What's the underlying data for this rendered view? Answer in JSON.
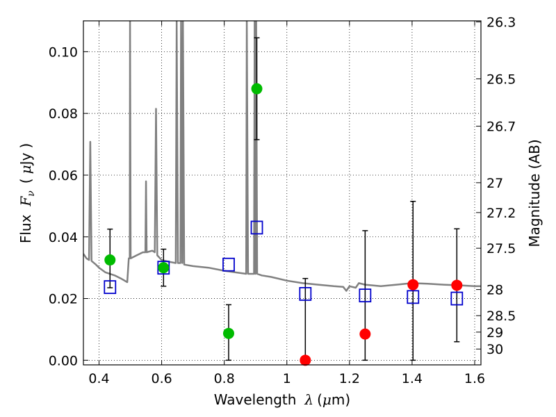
{
  "chart_data": {
    "type": "scatter",
    "xlabel": {
      "prefix": "Wavelength",
      "symbol": "λ",
      "unit_open": "(",
      "unit_mu": "μ",
      "unit_rest": "m)"
    },
    "ylabel": {
      "prefix": "Flux",
      "symbol": "F",
      "subscript": "ν",
      "unit_open": "(",
      "unit_mu": "μ",
      "unit_rest": "Jy",
      "unit_close": ")"
    },
    "y2label": "Magnitude (AB)",
    "xlim": [
      0.35,
      1.62
    ],
    "ylim": [
      -0.0015,
      0.11
    ],
    "grid": true,
    "x_ticks": [
      {
        "value": 0.4,
        "label": "0.4"
      },
      {
        "value": 0.6,
        "label": "0.6"
      },
      {
        "value": 0.8,
        "label": "0.8"
      },
      {
        "value": 1.0,
        "label": "1"
      },
      {
        "value": 1.2,
        "label": "1.2"
      },
      {
        "value": 1.4,
        "label": "1.4"
      },
      {
        "value": 1.6,
        "label": "1.6"
      }
    ],
    "y_ticks": [
      {
        "value": 0.0,
        "label": "0.00"
      },
      {
        "value": 0.02,
        "label": "0.02"
      },
      {
        "value": 0.04,
        "label": "0.04"
      },
      {
        "value": 0.06,
        "label": "0.06"
      },
      {
        "value": 0.08,
        "label": "0.08"
      },
      {
        "value": 0.1,
        "label": "0.10"
      }
    ],
    "mag_ticks": [
      {
        "value": 26.3,
        "label": "26.3"
      },
      {
        "value": 26.5,
        "label": "26.5"
      },
      {
        "value": 26.7,
        "label": "26.7"
      },
      {
        "value": 27.0,
        "label": "27"
      },
      {
        "value": 27.2,
        "label": "27.2"
      },
      {
        "value": 27.5,
        "label": "27.5"
      },
      {
        "value": 28.0,
        "label": "28"
      },
      {
        "value": 28.5,
        "label": "28.5"
      },
      {
        "value": 29.0,
        "label": "29"
      },
      {
        "value": 30.0,
        "label": "30"
      }
    ],
    "colors": {
      "detection": "#00bb00",
      "upper_limit": "#ff0000",
      "model": "#0000cc",
      "template": "#808080",
      "errorbar": "#000000"
    },
    "observed": [
      {
        "x": 0.435,
        "y": 0.0325,
        "yerr_low": 0.009,
        "yerr_high": 0.01,
        "kind": "detection"
      },
      {
        "x": 0.606,
        "y": 0.03,
        "yerr_low": 0.006,
        "yerr_high": 0.006,
        "kind": "detection"
      },
      {
        "x": 0.814,
        "y": 0.0087,
        "yerr_low": 0.0087,
        "yerr_high": 0.0093,
        "kind": "detection"
      },
      {
        "x": 0.904,
        "y": 0.088,
        "yerr_low": 0.0165,
        "yerr_high": 0.0165,
        "kind": "detection"
      },
      {
        "x": 1.059,
        "y": 0.0,
        "yerr_low": 0.0,
        "yerr_high": 0.0265,
        "kind": "upper_limit"
      },
      {
        "x": 1.25,
        "y": 0.0085,
        "yerr_low": 0.0085,
        "yerr_high": 0.0335,
        "kind": "upper_limit"
      },
      {
        "x": 1.403,
        "y": 0.0245,
        "yerr_low": 0.0245,
        "yerr_high": 0.027,
        "kind": "upper_limit"
      },
      {
        "x": 1.543,
        "y": 0.0243,
        "yerr_low": 0.0183,
        "yerr_high": 0.0183,
        "kind": "upper_limit"
      }
    ],
    "model_photometry": [
      {
        "x": 0.435,
        "y": 0.0237
      },
      {
        "x": 0.606,
        "y": 0.03
      },
      {
        "x": 0.814,
        "y": 0.031
      },
      {
        "x": 0.904,
        "y": 0.043
      },
      {
        "x": 1.059,
        "y": 0.0215
      },
      {
        "x": 1.25,
        "y": 0.021
      },
      {
        "x": 1.403,
        "y": 0.0205
      },
      {
        "x": 1.543,
        "y": 0.02
      }
    ],
    "template_spectrum": [
      [
        0.35,
        0.0345
      ],
      [
        0.36,
        0.033
      ],
      [
        0.368,
        0.0325
      ],
      [
        0.372,
        0.0708
      ],
      [
        0.376,
        0.0322
      ],
      [
        0.39,
        0.031
      ],
      [
        0.4,
        0.03
      ],
      [
        0.42,
        0.0285
      ],
      [
        0.45,
        0.0275
      ],
      [
        0.47,
        0.0265
      ],
      [
        0.49,
        0.0253
      ],
      [
        0.495,
        0.033
      ],
      [
        0.498,
        0.033
      ],
      [
        0.499,
        0.11
      ],
      [
        0.501,
        0.033
      ],
      [
        0.52,
        0.034
      ],
      [
        0.54,
        0.035
      ],
      [
        0.548,
        0.035
      ],
      [
        0.55,
        0.058
      ],
      [
        0.552,
        0.035
      ],
      [
        0.57,
        0.0355
      ],
      [
        0.578,
        0.035
      ],
      [
        0.582,
        0.0815
      ],
      [
        0.586,
        0.034
      ],
      [
        0.6,
        0.0325
      ],
      [
        0.62,
        0.032
      ],
      [
        0.645,
        0.0315
      ],
      [
        0.648,
        0.11
      ],
      [
        0.652,
        0.0315
      ],
      [
        0.66,
        0.0315
      ],
      [
        0.662,
        0.11
      ],
      [
        0.666,
        0.0315
      ],
      [
        0.668,
        0.11
      ],
      [
        0.672,
        0.031
      ],
      [
        0.7,
        0.0305
      ],
      [
        0.75,
        0.03
      ],
      [
        0.8,
        0.029
      ],
      [
        0.85,
        0.0283
      ],
      [
        0.87,
        0.028
      ],
      [
        0.872,
        0.11
      ],
      [
        0.876,
        0.028
      ],
      [
        0.895,
        0.028
      ],
      [
        0.897,
        0.11
      ],
      [
        0.899,
        0.028
      ],
      [
        0.9,
        0.028
      ],
      [
        0.902,
        0.11
      ],
      [
        0.905,
        0.028
      ],
      [
        0.92,
        0.0275
      ],
      [
        0.95,
        0.027
      ],
      [
        1.0,
        0.0258
      ],
      [
        1.05,
        0.025
      ],
      [
        1.1,
        0.0245
      ],
      [
        1.15,
        0.024
      ],
      [
        1.18,
        0.0238
      ],
      [
        1.19,
        0.0225
      ],
      [
        1.2,
        0.024
      ],
      [
        1.22,
        0.0235
      ],
      [
        1.23,
        0.025
      ],
      [
        1.25,
        0.0245
      ],
      [
        1.3,
        0.024
      ],
      [
        1.35,
        0.0245
      ],
      [
        1.4,
        0.025
      ],
      [
        1.45,
        0.0248
      ],
      [
        1.5,
        0.0245
      ],
      [
        1.55,
        0.0243
      ],
      [
        1.6,
        0.024
      ],
      [
        1.62,
        0.024
      ]
    ]
  }
}
